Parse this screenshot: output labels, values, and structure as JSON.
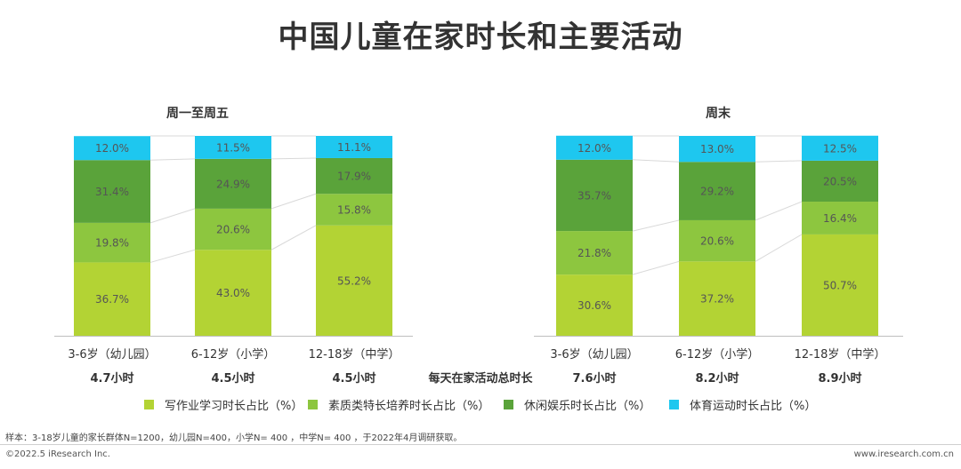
{
  "title": "中国儿童在家时长和主要活动",
  "total_time_label": "每天在家活动总时长",
  "colors": {
    "homework": "#b3d334",
    "quality": "#8dc63f",
    "leisure": "#5aa33a",
    "sports": "#1ec7ef"
  },
  "legend": [
    {
      "label": "写作业学习时长占比（%）",
      "color_key": "homework"
    },
    {
      "label": "素质类特长培养时长占比（%）",
      "color_key": "quality"
    },
    {
      "label": "休闲娱乐时长占比（%）",
      "color_key": "leisure"
    },
    {
      "label": "体育运动时长占比（%）",
      "color_key": "sports"
    }
  ],
  "chart_data": [
    {
      "type": "bar",
      "stacked": true,
      "normalized_percent": true,
      "title": "周一至周五",
      "categories": [
        "3-6岁（幼儿园）",
        "6-12岁（小学）",
        "12-18岁（中学）"
      ],
      "totals": [
        "4.7小时",
        "4.5小时",
        "4.5小时"
      ],
      "series": [
        {
          "name": "写作业学习时长占比（%）",
          "color_key": "homework",
          "values": [
            36.7,
            43.0,
            55.2
          ]
        },
        {
          "name": "素质类特长培养时长占比（%）",
          "color_key": "quality",
          "values": [
            19.8,
            20.6,
            15.8
          ]
        },
        {
          "name": "休闲娱乐时长占比（%）",
          "color_key": "leisure",
          "values": [
            31.4,
            24.9,
            17.9
          ]
        },
        {
          "name": "体育运动时长占比（%）",
          "color_key": "sports",
          "values": [
            12.0,
            11.5,
            11.1
          ]
        }
      ]
    },
    {
      "type": "bar",
      "stacked": true,
      "normalized_percent": true,
      "title": "周末",
      "categories": [
        "3-6岁（幼儿园）",
        "6-12岁（小学）",
        "12-18岁（中学）"
      ],
      "totals": [
        "7.6小时",
        "8.2小时",
        "8.9小时"
      ],
      "series": [
        {
          "name": "写作业学习时长占比（%）",
          "color_key": "homework",
          "values": [
            30.6,
            37.2,
            50.7
          ]
        },
        {
          "name": "素质类特长培养时长占比（%）",
          "color_key": "quality",
          "values": [
            21.8,
            20.6,
            16.4
          ]
        },
        {
          "name": "休闲娱乐时长占比（%）",
          "color_key": "leisure",
          "values": [
            35.7,
            29.2,
            20.5
          ]
        },
        {
          "name": "体育运动时长占比（%）",
          "color_key": "sports",
          "values": [
            12.0,
            13.0,
            12.5
          ]
        }
      ]
    }
  ],
  "sample_note": "样本：3-18岁儿童的家长群体N=1200，幼儿园N=400，小学N= 400 ，中学N= 400 ，于2022年4月调研获取。",
  "footer": {
    "copyright": "©2022.5 iResearch Inc.",
    "site": "www.iresearch.com.cn"
  }
}
